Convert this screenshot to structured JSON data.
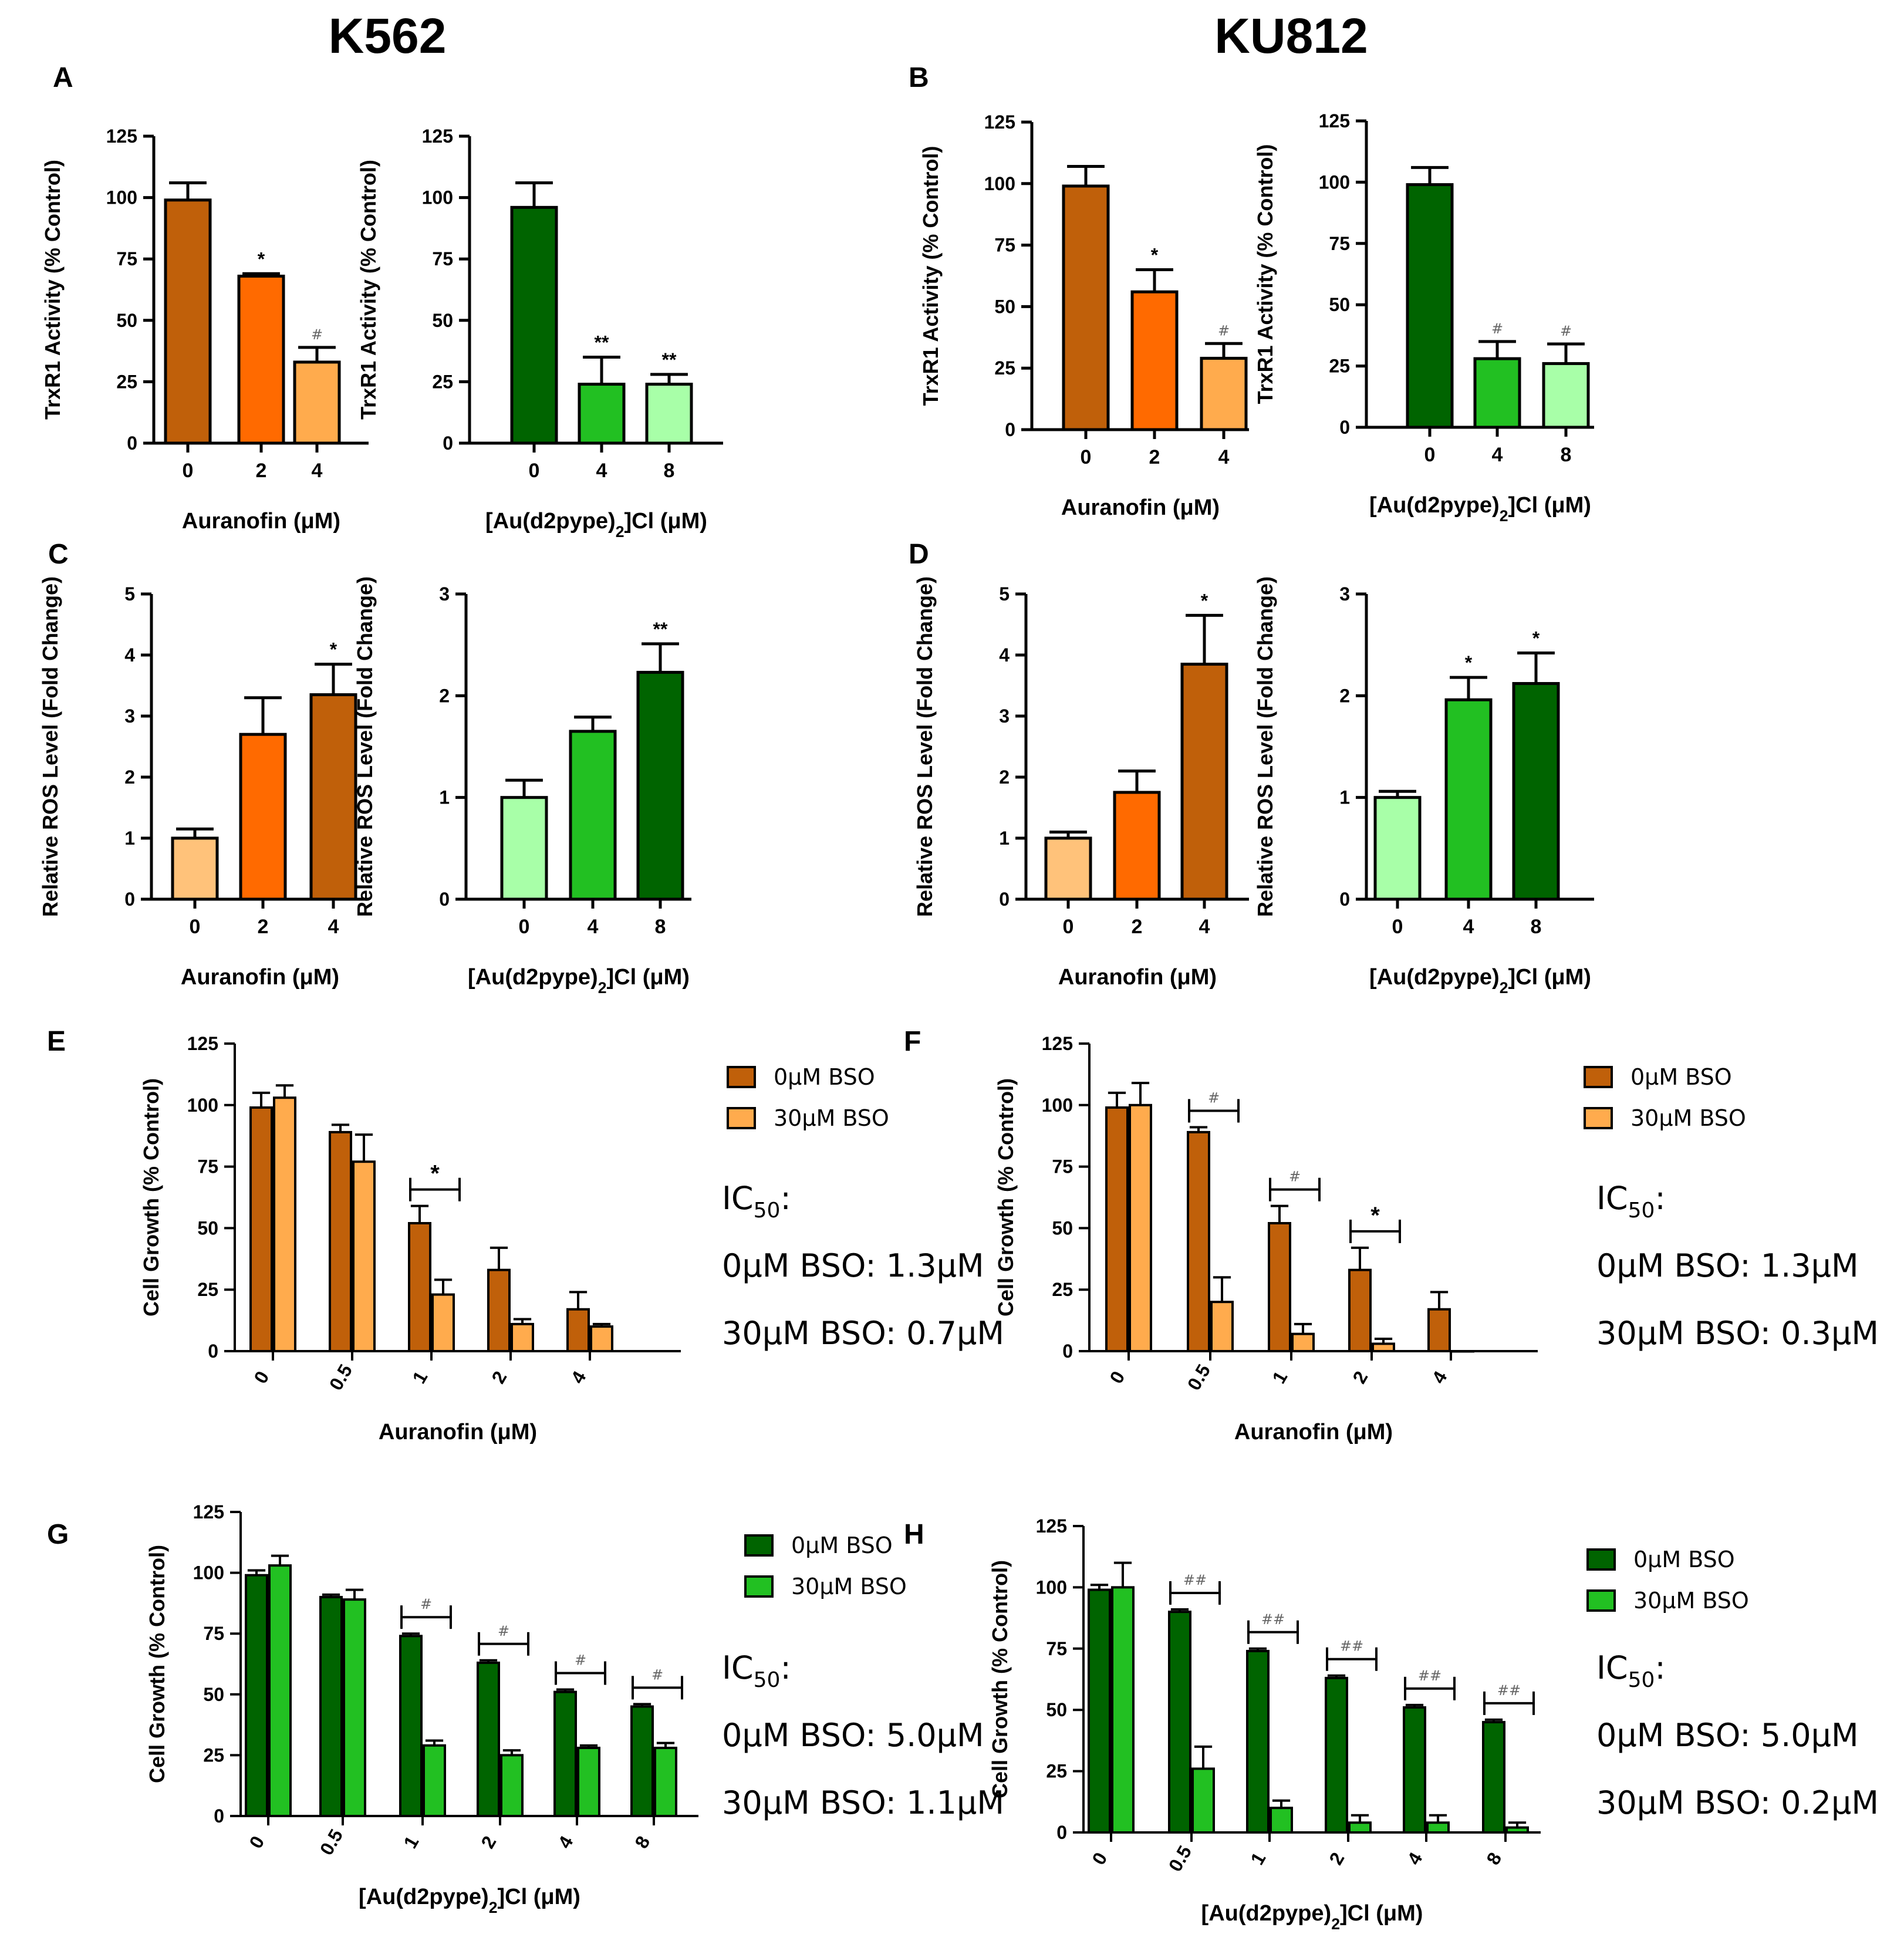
{
  "headers": {
    "left": "K562",
    "right": "KU812"
  },
  "panel_letters": [
    "A",
    "B",
    "C",
    "D",
    "E",
    "F",
    "G",
    "H"
  ],
  "colors": {
    "auranofin_0": "#c0600a",
    "auranofin_2": "#ff6a00",
    "auranofin_4": "#ffab4d",
    "auranofin_light": "#ffc27a",
    "au_0": "#006400",
    "au_4": "#22c022",
    "au_8": "#a8ffa8",
    "bso0_orange": "#c0600a",
    "bso30_orange": "#ffab4d",
    "bso0_green": "#006400",
    "bso30_green": "#22c022"
  },
  "chart_data": [
    {
      "id": "A1",
      "panel": "A",
      "type": "bar",
      "categories": [
        "0",
        "2",
        "4"
      ],
      "values": [
        99,
        68,
        33
      ],
      "errors": [
        7,
        1,
        6
      ],
      "sig": [
        "",
        "*",
        "#"
      ],
      "bar_colors": [
        "#c0600a",
        "#ff6a00",
        "#ffab4d"
      ],
      "ylabel": "TrxR1 Activity (% Control)",
      "xlabel": "Auranofin (μM)",
      "ylim": [
        0,
        125
      ],
      "yticks": [
        "0",
        "25",
        "50",
        "75",
        "100",
        "125"
      ]
    },
    {
      "id": "A2",
      "panel": "A",
      "type": "bar",
      "categories": [
        "0",
        "4",
        "8"
      ],
      "values": [
        96,
        24,
        24
      ],
      "errors": [
        10,
        11,
        4
      ],
      "sig": [
        "",
        "**",
        "**"
      ],
      "bar_colors": [
        "#006400",
        "#22c022",
        "#a8ffa8"
      ],
      "ylabel": "TrxR1 Activity (% Control)",
      "xlabel": "[Au(d2pype)2]Cl (μM)",
      "ylim": [
        0,
        125
      ],
      "yticks": [
        "0",
        "25",
        "50",
        "75",
        "100",
        "125"
      ]
    },
    {
      "id": "B1",
      "panel": "B",
      "type": "bar",
      "categories": [
        "0",
        "2",
        "4"
      ],
      "values": [
        99,
        56,
        29
      ],
      "errors": [
        8,
        9,
        6
      ],
      "sig": [
        "",
        "*",
        "#"
      ],
      "bar_colors": [
        "#c0600a",
        "#ff6a00",
        "#ffab4d"
      ],
      "ylabel": "TrxR1 Activity (% Control)",
      "xlabel": "Auranofin (μM)",
      "ylim": [
        0,
        125
      ],
      "yticks": [
        "0",
        "25",
        "50",
        "75",
        "100",
        "125"
      ]
    },
    {
      "id": "B2",
      "panel": "B",
      "type": "bar",
      "categories": [
        "0",
        "4",
        "8"
      ],
      "values": [
        99,
        28,
        26
      ],
      "errors": [
        7,
        7,
        8
      ],
      "sig": [
        "",
        "#",
        "#"
      ],
      "bar_colors": [
        "#006400",
        "#22c022",
        "#a8ffa8"
      ],
      "ylabel": "TrxR1 Activity (% Control)",
      "xlabel": "[Au(d2pype)2]Cl (μM)",
      "ylim": [
        0,
        125
      ],
      "yticks": [
        "0",
        "25",
        "50",
        "75",
        "100",
        "125"
      ]
    },
    {
      "id": "C1",
      "panel": "C",
      "type": "bar",
      "categories": [
        "0",
        "2",
        "4"
      ],
      "values": [
        1.0,
        2.7,
        3.35
      ],
      "errors": [
        0.15,
        0.6,
        0.5
      ],
      "sig": [
        "",
        "",
        "*"
      ],
      "bar_colors": [
        "#ffc27a",
        "#ff6a00",
        "#c0600a"
      ],
      "ylabel": "Relative ROS Level (Fold Change)",
      "xlabel": "Auranofin (μM)",
      "ylim": [
        0,
        5
      ],
      "yticks": [
        "0",
        "1",
        "2",
        "3",
        "4",
        "5"
      ]
    },
    {
      "id": "C2",
      "panel": "C",
      "type": "bar",
      "categories": [
        "0",
        "4",
        "8"
      ],
      "values": [
        1.0,
        1.65,
        2.23
      ],
      "errors": [
        0.17,
        0.14,
        0.28
      ],
      "sig": [
        "",
        "",
        "**"
      ],
      "bar_colors": [
        "#a8ffa8",
        "#22c022",
        "#006400"
      ],
      "ylabel": "Relative ROS Level (Fold Change)",
      "xlabel": "[Au(d2pype)2]Cl (μM)",
      "ylim": [
        0,
        3
      ],
      "yticks": [
        "0",
        "1",
        "2",
        "3"
      ]
    },
    {
      "id": "D1",
      "panel": "D",
      "type": "bar",
      "categories": [
        "0",
        "2",
        "4"
      ],
      "values": [
        1.0,
        1.75,
        3.85
      ],
      "errors": [
        0.1,
        0.35,
        0.8
      ],
      "sig": [
        "",
        "",
        "*"
      ],
      "bar_colors": [
        "#ffc27a",
        "#ff6a00",
        "#c0600a"
      ],
      "ylabel": "Relative ROS Level (Fold Change)",
      "xlabel": "Auranofin (μM)",
      "ylim": [
        0,
        5
      ],
      "yticks": [
        "0",
        "1",
        "2",
        "3",
        "4",
        "5"
      ]
    },
    {
      "id": "D2",
      "panel": "D",
      "type": "bar",
      "categories": [
        "0",
        "4",
        "8"
      ],
      "values": [
        1.0,
        1.96,
        2.12
      ],
      "errors": [
        0.06,
        0.22,
        0.3
      ],
      "sig": [
        "",
        "*",
        "*"
      ],
      "bar_colors": [
        "#a8ffa8",
        "#22c022",
        "#006400"
      ],
      "ylabel": "Relative ROS Level (Fold Change)",
      "xlabel": "[Au(d2pype)2]Cl (μM)",
      "ylim": [
        0,
        3
      ],
      "yticks": [
        "0",
        "1",
        "2",
        "3"
      ]
    },
    {
      "id": "E",
      "panel": "E",
      "type": "bar",
      "categories": [
        "0",
        "0.5",
        "1",
        "2",
        "4"
      ],
      "series": [
        {
          "name": "0μM BSO",
          "color": "#c0600a",
          "values": [
            99,
            89,
            52,
            33,
            17
          ],
          "errors": [
            6,
            3,
            7,
            9,
            7
          ]
        },
        {
          "name": "30μM BSO",
          "color": "#ffab4d",
          "values": [
            103,
            77,
            23,
            11,
            10
          ],
          "errors": [
            5,
            11,
            6,
            2,
            1
          ]
        }
      ],
      "brackets": [
        {
          "index": 2,
          "label": "*"
        }
      ],
      "ylabel": "Cell Growth (% Control)",
      "xlabel": "Auranofin (μM)",
      "ylim": [
        0,
        125
      ],
      "yticks": [
        "0",
        "25",
        "50",
        "75",
        "100",
        "125"
      ],
      "ic50": {
        "title": "IC",
        "sub": "50",
        "colon": ":",
        "line1": "0μM BSO: 1.3μM",
        "line2": "30μM BSO: 0.7μM"
      }
    },
    {
      "id": "F",
      "panel": "F",
      "type": "bar",
      "categories": [
        "0",
        "0.5",
        "1",
        "2",
        "4"
      ],
      "series": [
        {
          "name": "0μM BSO",
          "color": "#c0600a",
          "values": [
            99,
            89,
            52,
            33,
            17
          ],
          "errors": [
            6,
            2,
            7,
            9,
            7
          ]
        },
        {
          "name": "30μM BSO",
          "color": "#ffab4d",
          "values": [
            100,
            20,
            7,
            3,
            0
          ],
          "errors": [
            9,
            10,
            4,
            2,
            0
          ]
        }
      ],
      "brackets": [
        {
          "index": 1,
          "label": "#"
        },
        {
          "index": 2,
          "label": "#"
        },
        {
          "index": 3,
          "label": "*"
        }
      ],
      "ylabel": "Cell Growth (% Control)",
      "xlabel": "Auranofin (μM)",
      "ylim": [
        0,
        125
      ],
      "yticks": [
        "0",
        "25",
        "50",
        "75",
        "100",
        "125"
      ],
      "ic50": {
        "title": "IC",
        "sub": "50",
        "colon": ":",
        "line1": "0μM BSO: 1.3μM",
        "line2": "30μM BSO: 0.3μM"
      }
    },
    {
      "id": "G",
      "panel": "G",
      "type": "bar",
      "categories": [
        "0",
        "0.5",
        "1",
        "2",
        "4",
        "8"
      ],
      "series": [
        {
          "name": "0μM BSO",
          "color": "#006400",
          "values": [
            99,
            90,
            74,
            63,
            51,
            45
          ],
          "errors": [
            2,
            1,
            1,
            1,
            1,
            1
          ]
        },
        {
          "name": "30μM BSO",
          "color": "#22c022",
          "values": [
            103,
            89,
            29,
            25,
            28,
            28
          ],
          "errors": [
            4,
            4,
            2,
            2,
            1,
            2
          ]
        }
      ],
      "brackets": [
        {
          "index": 2,
          "label": "#"
        },
        {
          "index": 3,
          "label": "#"
        },
        {
          "index": 4,
          "label": "#"
        },
        {
          "index": 5,
          "label": "#"
        }
      ],
      "ylabel": "Cell Growth (% Control)",
      "xlabel": "[Au(d2pype)2]Cl (μM)",
      "ylim": [
        0,
        125
      ],
      "yticks": [
        "0",
        "25",
        "50",
        "75",
        "100",
        "125"
      ],
      "ic50": {
        "title": "IC",
        "sub": "50",
        "colon": ":",
        "line1": "0μM BSO: 5.0μM",
        "line2": "30μM BSO: 1.1μM"
      }
    },
    {
      "id": "H",
      "panel": "H",
      "type": "bar",
      "categories": [
        "0",
        "0.5",
        "1",
        "2",
        "4",
        "8"
      ],
      "series": [
        {
          "name": "0μM BSO",
          "color": "#006400",
          "values": [
            99,
            90,
            74,
            63,
            51,
            45
          ],
          "errors": [
            2,
            1,
            1,
            1,
            1,
            1
          ]
        },
        {
          "name": "30μM BSO",
          "color": "#22c022",
          "values": [
            100,
            26,
            10,
            4,
            4,
            2
          ],
          "errors": [
            10,
            9,
            3,
            3,
            3,
            2
          ]
        }
      ],
      "brackets": [
        {
          "index": 1,
          "label": "##"
        },
        {
          "index": 2,
          "label": "##"
        },
        {
          "index": 3,
          "label": "##"
        },
        {
          "index": 4,
          "label": "##"
        },
        {
          "index": 5,
          "label": "##"
        }
      ],
      "ylabel": "Cell Growth (% Control)",
      "xlabel": "[Au(d2pype)2]Cl (μM)",
      "ylim": [
        0,
        125
      ],
      "yticks": [
        "0",
        "25",
        "50",
        "75",
        "100",
        "125"
      ],
      "ic50": {
        "title": "IC",
        "sub": "50",
        "colon": ":",
        "line1": "0μM BSO: 5.0μM",
        "line2": "30μM BSO: 0.2μM"
      }
    }
  ]
}
